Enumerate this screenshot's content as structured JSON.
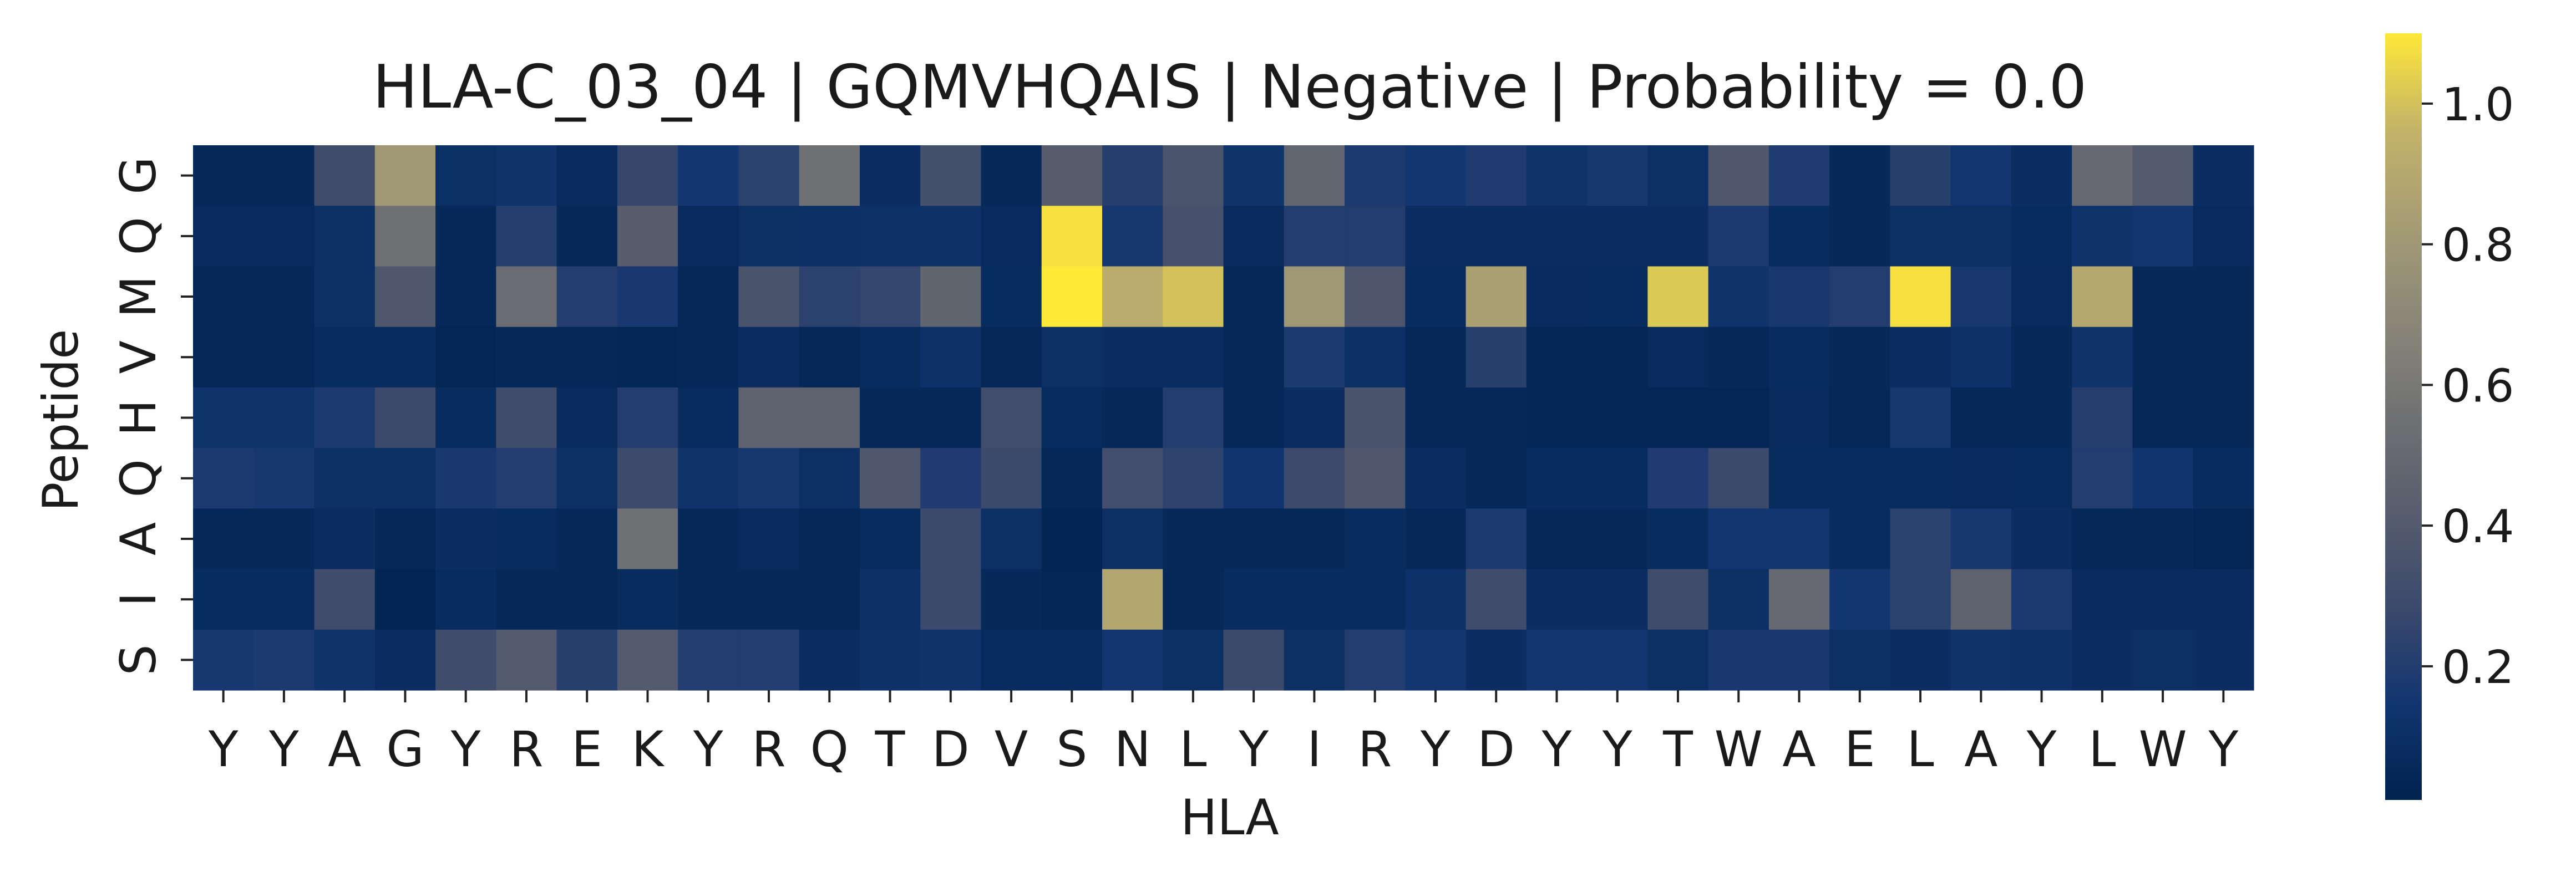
{
  "chart_data": {
    "type": "heatmap",
    "title": "HLA-C_03_04 | GQMVHQAIS | Negative | Probability = 0.0",
    "xlabel": "HLA",
    "ylabel": "Peptide",
    "x_categories": [
      "Y",
      "Y",
      "A",
      "G",
      "Y",
      "R",
      "E",
      "K",
      "Y",
      "R",
      "Q",
      "T",
      "D",
      "V",
      "S",
      "N",
      "L",
      "Y",
      "I",
      "R",
      "Y",
      "D",
      "Y",
      "Y",
      "T",
      "W",
      "A",
      "E",
      "L",
      "A",
      "Y",
      "L",
      "W",
      "Y"
    ],
    "y_categories": [
      "G",
      "Q",
      "M",
      "V",
      "H",
      "Q",
      "A",
      "I",
      "S"
    ],
    "values": [
      [
        0.06,
        0.06,
        0.3,
        0.8,
        0.1,
        0.13,
        0.07,
        0.27,
        0.15,
        0.23,
        0.55,
        0.09,
        0.33,
        0.06,
        0.42,
        0.21,
        0.36,
        0.13,
        0.48,
        0.18,
        0.15,
        0.19,
        0.13,
        0.16,
        0.1,
        0.38,
        0.19,
        0.06,
        0.22,
        0.15,
        0.09,
        0.5,
        0.4,
        0.09
      ],
      [
        0.07,
        0.07,
        0.1,
        0.55,
        0.06,
        0.21,
        0.06,
        0.42,
        0.07,
        0.1,
        0.11,
        0.12,
        0.12,
        0.07,
        1.08,
        0.16,
        0.34,
        0.07,
        0.2,
        0.2,
        0.09,
        0.09,
        0.09,
        0.09,
        0.09,
        0.18,
        0.08,
        0.06,
        0.1,
        0.1,
        0.08,
        0.13,
        0.15,
        0.07
      ],
      [
        0.05,
        0.05,
        0.1,
        0.38,
        0.05,
        0.52,
        0.2,
        0.17,
        0.05,
        0.35,
        0.23,
        0.26,
        0.47,
        0.08,
        1.1,
        0.92,
        1.0,
        0.06,
        0.8,
        0.37,
        0.08,
        0.85,
        0.07,
        0.08,
        1.02,
        0.13,
        0.17,
        0.2,
        1.08,
        0.17,
        0.07,
        0.9,
        0.06,
        0.06
      ],
      [
        0.05,
        0.05,
        0.08,
        0.08,
        0.04,
        0.06,
        0.06,
        0.04,
        0.05,
        0.09,
        0.05,
        0.08,
        0.12,
        0.05,
        0.1,
        0.09,
        0.09,
        0.05,
        0.18,
        0.11,
        0.05,
        0.22,
        0.04,
        0.04,
        0.07,
        0.05,
        0.08,
        0.06,
        0.09,
        0.12,
        0.06,
        0.13,
        0.06,
        0.06
      ],
      [
        0.13,
        0.13,
        0.18,
        0.28,
        0.08,
        0.3,
        0.07,
        0.2,
        0.08,
        0.45,
        0.45,
        0.06,
        0.06,
        0.31,
        0.08,
        0.06,
        0.2,
        0.06,
        0.09,
        0.35,
        0.06,
        0.05,
        0.04,
        0.04,
        0.04,
        0.04,
        0.07,
        0.05,
        0.16,
        0.05,
        0.06,
        0.21,
        0.05,
        0.06
      ],
      [
        0.18,
        0.16,
        0.1,
        0.1,
        0.17,
        0.2,
        0.1,
        0.29,
        0.13,
        0.16,
        0.1,
        0.38,
        0.19,
        0.28,
        0.05,
        0.32,
        0.24,
        0.14,
        0.29,
        0.38,
        0.09,
        0.06,
        0.08,
        0.08,
        0.19,
        0.28,
        0.08,
        0.08,
        0.08,
        0.07,
        0.08,
        0.2,
        0.14,
        0.08
      ],
      [
        0.06,
        0.06,
        0.09,
        0.05,
        0.09,
        0.08,
        0.06,
        0.55,
        0.06,
        0.07,
        0.05,
        0.08,
        0.28,
        0.1,
        0.03,
        0.1,
        0.06,
        0.06,
        0.06,
        0.08,
        0.06,
        0.18,
        0.06,
        0.06,
        0.08,
        0.15,
        0.15,
        0.08,
        0.23,
        0.16,
        0.09,
        0.06,
        0.06,
        0.04
      ],
      [
        0.08,
        0.08,
        0.3,
        0.03,
        0.08,
        0.06,
        0.06,
        0.08,
        0.06,
        0.06,
        0.05,
        0.11,
        0.28,
        0.06,
        0.04,
        0.88,
        0.05,
        0.08,
        0.08,
        0.08,
        0.12,
        0.3,
        0.09,
        0.09,
        0.3,
        0.1,
        0.5,
        0.15,
        0.23,
        0.45,
        0.18,
        0.07,
        0.07,
        0.07
      ],
      [
        0.16,
        0.18,
        0.13,
        0.09,
        0.3,
        0.4,
        0.22,
        0.4,
        0.2,
        0.2,
        0.09,
        0.12,
        0.13,
        0.08,
        0.08,
        0.15,
        0.1,
        0.28,
        0.1,
        0.2,
        0.15,
        0.09,
        0.15,
        0.15,
        0.1,
        0.17,
        0.17,
        0.1,
        0.09,
        0.13,
        0.12,
        0.09,
        0.1,
        0.09
      ]
    ],
    "colormap": "cividis",
    "colorbar": {
      "min": 0.01,
      "max": 1.1,
      "ticks": [
        "0.2",
        "0.4",
        "0.6",
        "0.8",
        "1.0"
      ],
      "tick_values": [
        0.2,
        0.4,
        0.6,
        0.8,
        1.0
      ]
    },
    "grid": false,
    "legend": "colorbar-right"
  }
}
